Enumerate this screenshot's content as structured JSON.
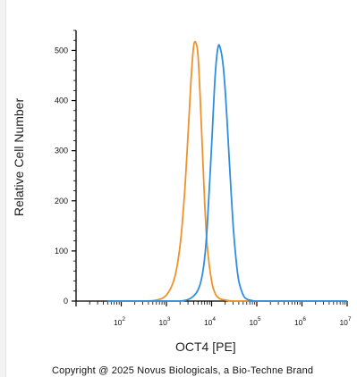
{
  "chart_data": {
    "type": "line",
    "title": "",
    "xlabel": "OCT4 [PE]",
    "ylabel": "Relative Cell Number",
    "x_scale": "log",
    "xlim": [
      10.0,
      10000000.0
    ],
    "ylim": [
      0,
      540
    ],
    "x_ticks": [
      {
        "value": 100,
        "base": "10",
        "exp": "2"
      },
      {
        "value": 1000,
        "base": "10",
        "exp": "3"
      },
      {
        "value": 10000,
        "base": "10",
        "exp": "4"
      },
      {
        "value": 100000,
        "base": "10",
        "exp": "5"
      },
      {
        "value": 1000000,
        "base": "10",
        "exp": "6"
      },
      {
        "value": 10000000,
        "base": "10",
        "exp": "7"
      }
    ],
    "y_ticks": [
      0,
      100,
      200,
      300,
      400,
      500
    ],
    "grid": false,
    "series": [
      {
        "color": "#f0922b",
        "x": [
          50,
          300,
          600,
          1000,
          1500,
          2000,
          2500,
          3000,
          3500,
          4000,
          4500,
          5000,
          5500,
          6000,
          7000,
          8000,
          10000,
          12000,
          15000,
          20000,
          30000,
          60000,
          1000000
        ],
        "y": [
          0,
          0,
          2,
          12,
          45,
          110,
          210,
          330,
          440,
          508,
          515,
          490,
          420,
          340,
          200,
          110,
          40,
          15,
          5,
          2,
          0,
          0,
          0
        ]
      },
      {
        "color": "#2f8ee0",
        "x": [
          50,
          1000,
          2000,
          3000,
          4000,
          5000,
          6000,
          7000,
          8000,
          10000,
          12000,
          14000,
          16000,
          18000,
          20000,
          22000,
          25000,
          30000,
          35000,
          40000,
          50000,
          60000,
          80000,
          100000,
          10000000
        ],
        "y": [
          0,
          0,
          0,
          3,
          10,
          22,
          45,
          85,
          150,
          310,
          450,
          508,
          500,
          470,
          420,
          360,
          270,
          150,
          80,
          40,
          12,
          4,
          1,
          0,
          0
        ]
      }
    ]
  },
  "footer": {
    "copyright": "Copyright @ 2025 Novus Biologicals, a Bio-Techne Brand"
  }
}
